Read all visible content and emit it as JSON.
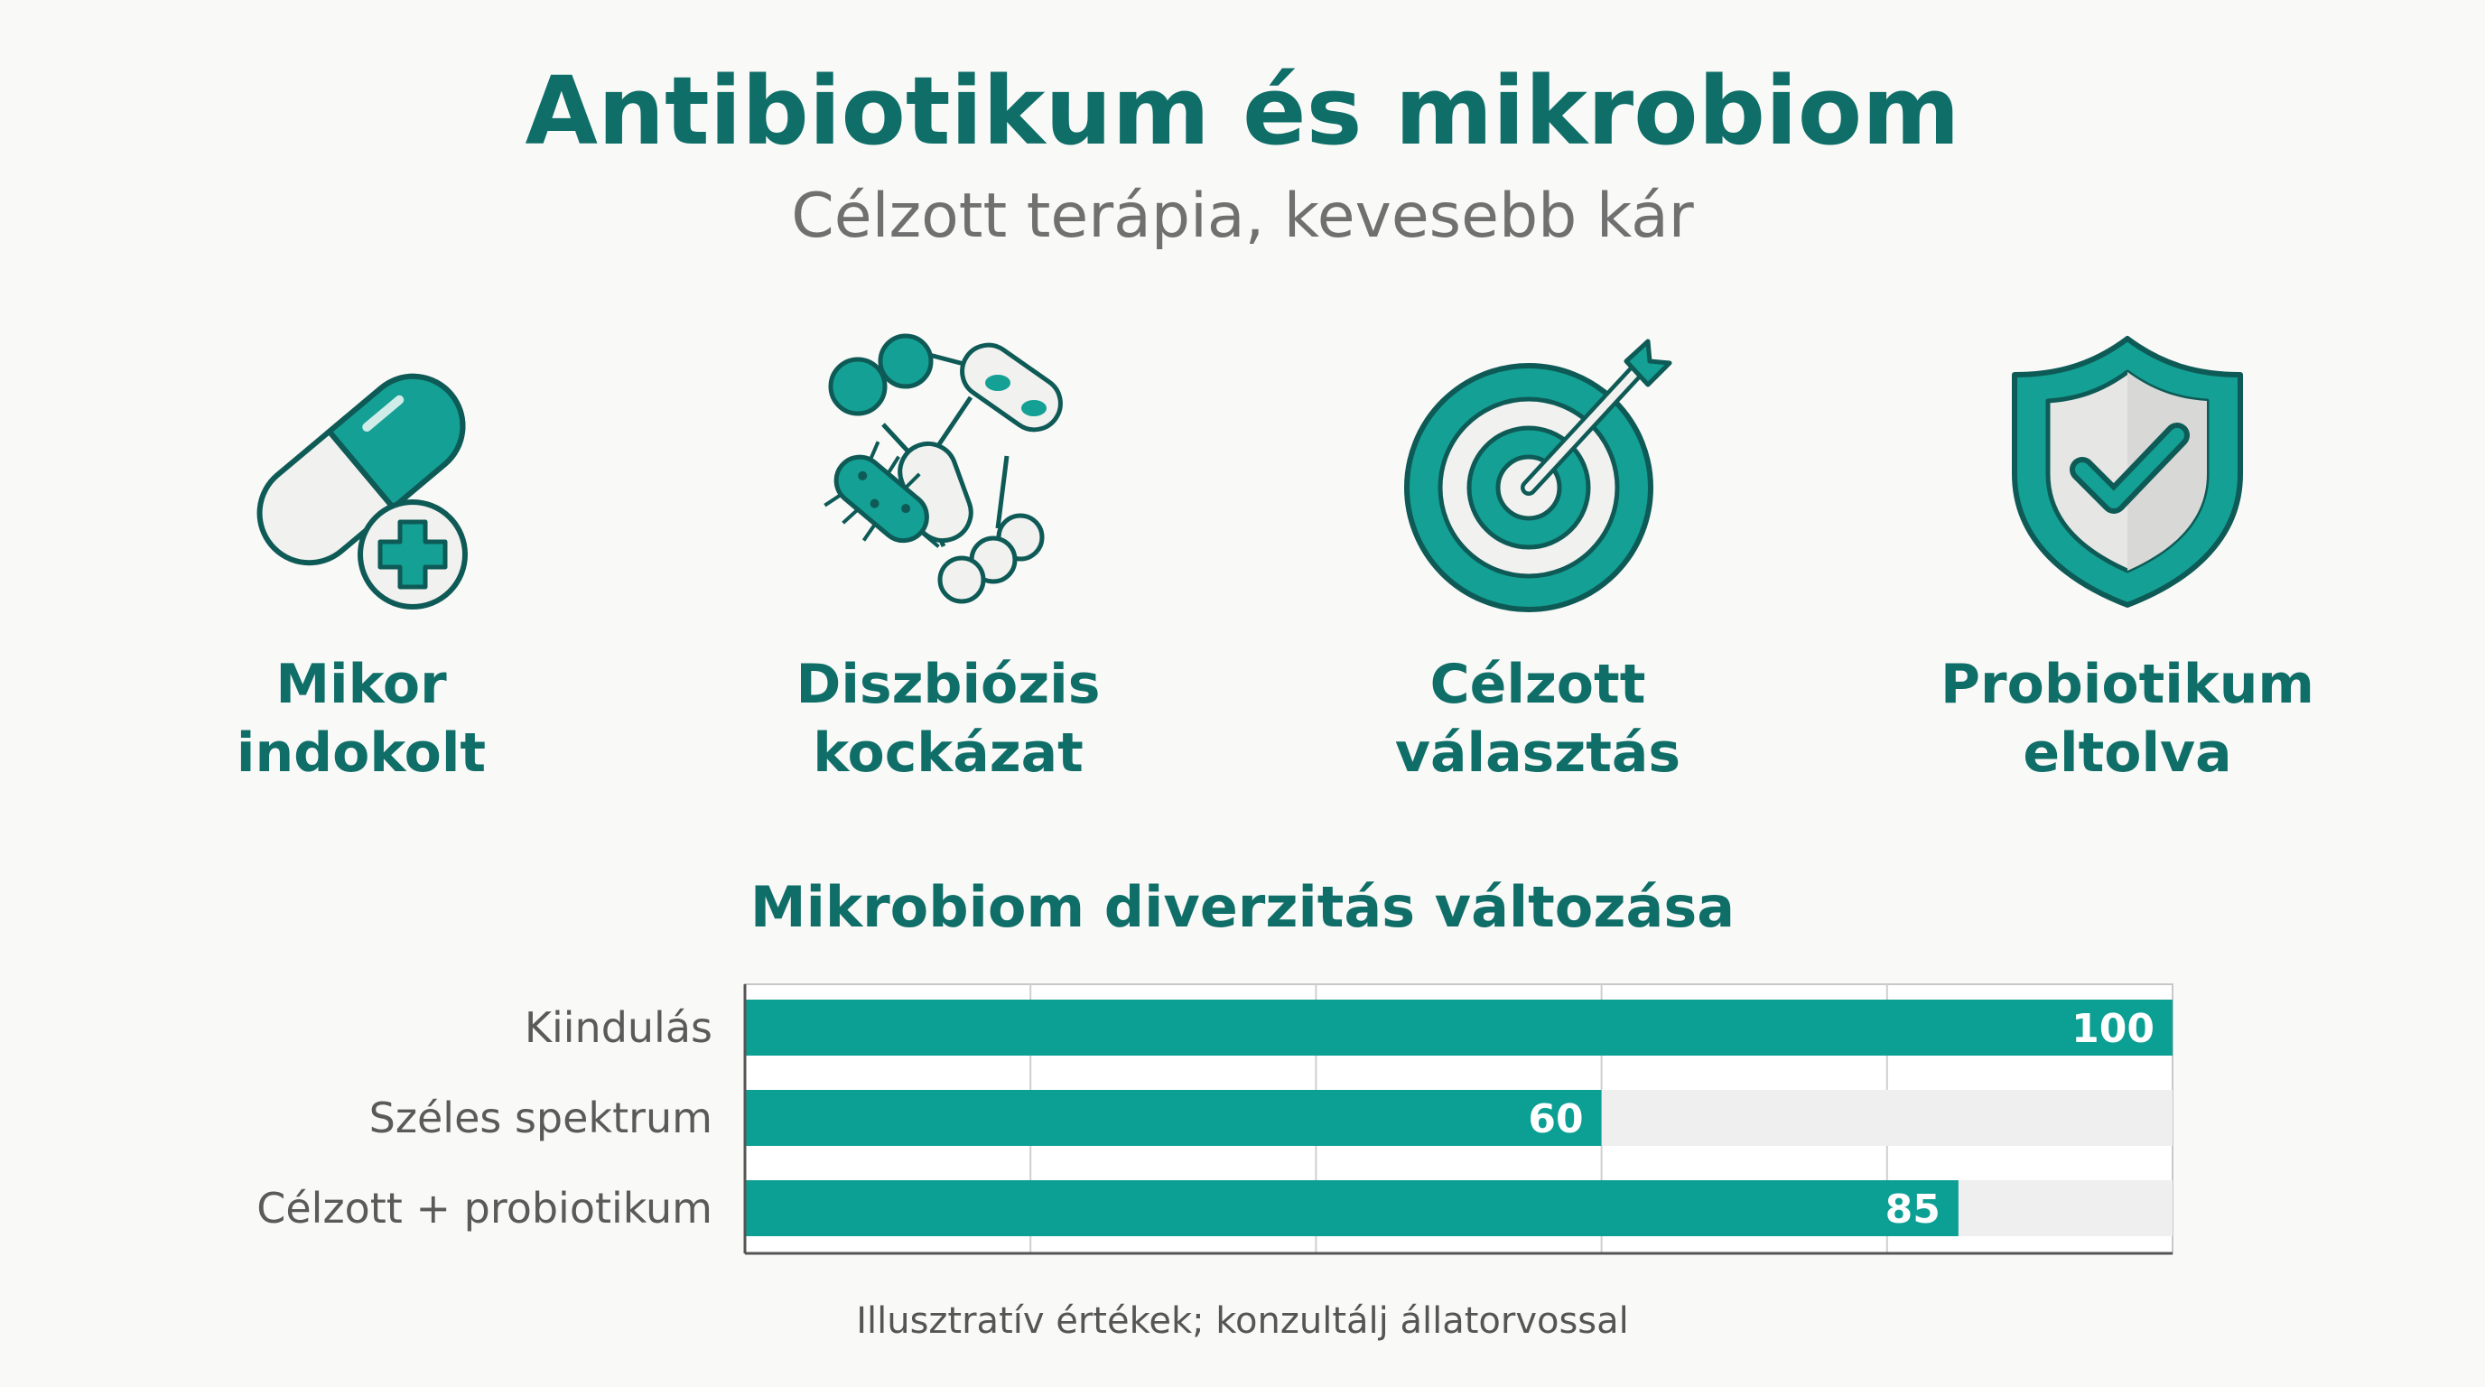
{
  "header": {
    "title": "Antibiotikum és mikrobiom",
    "subtitle": "Célzott terápia, kevesebb kár"
  },
  "features": [
    {
      "icon": "pill-plus-icon",
      "line1": "Mikor",
      "line2": "indokolt"
    },
    {
      "icon": "bacteria-cluster-icon",
      "line1": "Diszbiózis",
      "line2": "kockázat"
    },
    {
      "icon": "target-arrow-icon",
      "line1": "Célzott",
      "line2": "választás"
    },
    {
      "icon": "shield-check-icon",
      "line1": "Probiotikum",
      "line2": "eltolva"
    }
  ],
  "chart_data": {
    "type": "bar",
    "orientation": "horizontal",
    "title": "Mikrobiom diverzitás változása",
    "categories": [
      "Kiindulás",
      "Széles spektrum",
      "Célzott + probiotikum"
    ],
    "values": [
      100,
      60,
      85
    ],
    "xlim": [
      0,
      100
    ],
    "grid": true,
    "data_labels": true,
    "bar_color": "#0c9f94",
    "track_color": "#efefef"
  },
  "footnote": "Illusztratív értékek; konzultálj állatorvossal",
  "colors": {
    "primary": "#0f6e68",
    "accent": "#14a094",
    "light": "#efefef",
    "outline": "#0e5a56"
  }
}
